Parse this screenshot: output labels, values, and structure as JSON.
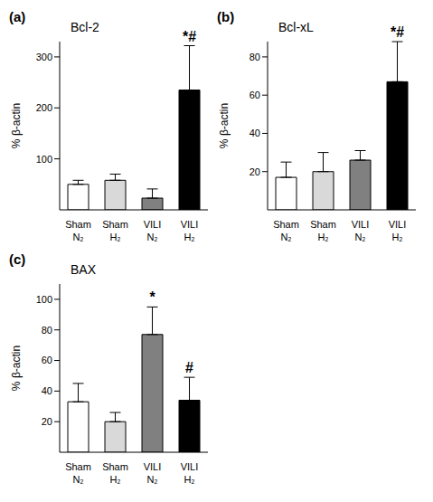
{
  "chart_data": [
    {
      "type": "bar",
      "panel_label": "(a)",
      "title": "Bcl-2",
      "y_label": "% β-actin",
      "categories": [
        "Sham N₂",
        "Sham H₂",
        "VILI N₂",
        "VILI H₂"
      ],
      "values": [
        50,
        58,
        23,
        235
      ],
      "errors": [
        8,
        12,
        18,
        87
      ],
      "annotations": [
        null,
        null,
        null,
        "*#"
      ],
      "colors": [
        "#ffffff",
        "#d9d9d9",
        "#808080",
        "#000000"
      ],
      "ylim": [
        0,
        330
      ],
      "yticks": [
        100,
        200,
        300
      ]
    },
    {
      "type": "bar",
      "panel_label": "(b)",
      "title": "Bcl-xL",
      "y_label": "% β-actin",
      "categories": [
        "Sham N₂",
        "Sham H₂",
        "VILI N₂",
        "VILI H₂"
      ],
      "values": [
        17,
        20,
        26,
        67
      ],
      "errors": [
        8,
        10,
        5,
        21
      ],
      "annotations": [
        null,
        null,
        null,
        "*#"
      ],
      "colors": [
        "#ffffff",
        "#d9d9d9",
        "#808080",
        "#000000"
      ],
      "ylim": [
        0,
        88
      ],
      "yticks": [
        20,
        40,
        60,
        80
      ]
    },
    {
      "type": "bar",
      "panel_label": "(c)",
      "title": "BAX",
      "y_label": "% β-actin",
      "categories": [
        "Sham N₂",
        "Sham H₂",
        "VILI N₂",
        "VILI H₂"
      ],
      "values": [
        33,
        20,
        77,
        34
      ],
      "errors": [
        12,
        6,
        18,
        15
      ],
      "annotations": [
        null,
        null,
        "*",
        "#"
      ],
      "colors": [
        "#ffffff",
        "#d9d9d9",
        "#808080",
        "#000000"
      ],
      "ylim": [
        0,
        110
      ],
      "yticks": [
        20,
        40,
        60,
        80,
        100
      ]
    }
  ]
}
